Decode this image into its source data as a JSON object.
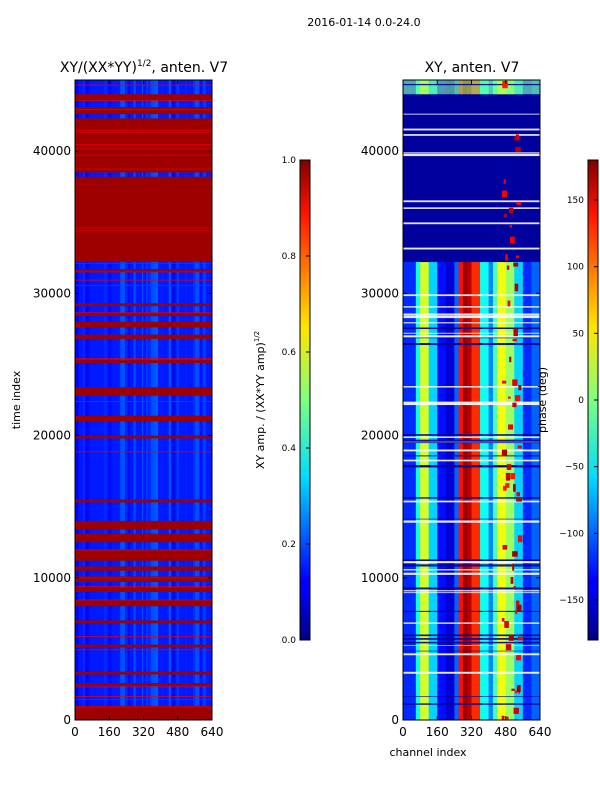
{
  "suptitle": "2016-01-14 0.0-24.0",
  "chart_data": [
    {
      "type": "heatmap",
      "title": "XY/(XX*YY)",
      "title_exponent": "1/2",
      "title_suffix": ", anten. V7",
      "xlabel": "",
      "ylabel": "time index",
      "xlim": [
        0,
        640
      ],
      "ylim": [
        0,
        45000
      ],
      "xticks": [
        "0",
        "160",
        "320",
        "480",
        "640"
      ],
      "yticks": [
        "0",
        "10000",
        "20000",
        "30000",
        "40000"
      ],
      "colormap": "jet",
      "background_value": 0.15,
      "saturated_bands": [
        [
          0,
          1000
        ],
        [
          2400,
          2600
        ],
        [
          3200,
          3400
        ],
        [
          5100,
          5300
        ],
        [
          6800,
          7000
        ],
        [
          8000,
          8400
        ],
        [
          9000,
          9300
        ],
        [
          9700,
          10100
        ],
        [
          10500,
          10800
        ],
        [
          11200,
          12000
        ],
        [
          12500,
          13100
        ],
        [
          13400,
          14000
        ],
        [
          15300,
          15500
        ],
        [
          19800,
          20000
        ],
        [
          21000,
          21400
        ],
        [
          22800,
          23400
        ],
        [
          25100,
          25300
        ],
        [
          26800,
          27100
        ],
        [
          27600,
          28000
        ],
        [
          28400,
          28600
        ],
        [
          29100,
          29300
        ],
        [
          31500,
          31700
        ],
        [
          32200,
          38200
        ],
        [
          38500,
          42300
        ],
        [
          42600,
          43100
        ],
        [
          43600,
          44000
        ]
      ],
      "colorbar": {
        "label": "XY amp. / (XX*YY amp)",
        "label_exponent": "1/2",
        "range": [
          0.0,
          1.0
        ],
        "ticks": [
          "0.0",
          "0.2",
          "0.4",
          "0.6",
          "0.8",
          "1.0"
        ]
      }
    },
    {
      "type": "heatmap",
      "title": "XY, anten. V7",
      "xlabel": "channel index",
      "ylabel": "",
      "xlim": [
        0,
        640
      ],
      "ylim": [
        0,
        45000
      ],
      "xticks": [
        "0",
        "160",
        "320",
        "480",
        "640"
      ],
      "yticks": [
        "0",
        "10000",
        "20000",
        "30000",
        "40000"
      ],
      "colormap": "jet",
      "phase_profile_channels": [
        0,
        60,
        80,
        120,
        160,
        200,
        240,
        260,
        280,
        300,
        320,
        360,
        400,
        420,
        440,
        480,
        520,
        560,
        600,
        640
      ],
      "phase_profile_deg": [
        -120,
        -40,
        30,
        -60,
        -130,
        -150,
        -100,
        130,
        170,
        160,
        120,
        -40,
        -90,
        -20,
        40,
        10,
        -60,
        -120,
        -100,
        -110
      ],
      "dark_band": [
        32200,
        44000
      ],
      "colorbar": {
        "label": "phase (deg)",
        "range": [
          -180,
          180
        ],
        "ticks": [
          "150",
          "100",
          "50",
          "0",
          "−50",
          "−100",
          "−150"
        ]
      }
    }
  ]
}
